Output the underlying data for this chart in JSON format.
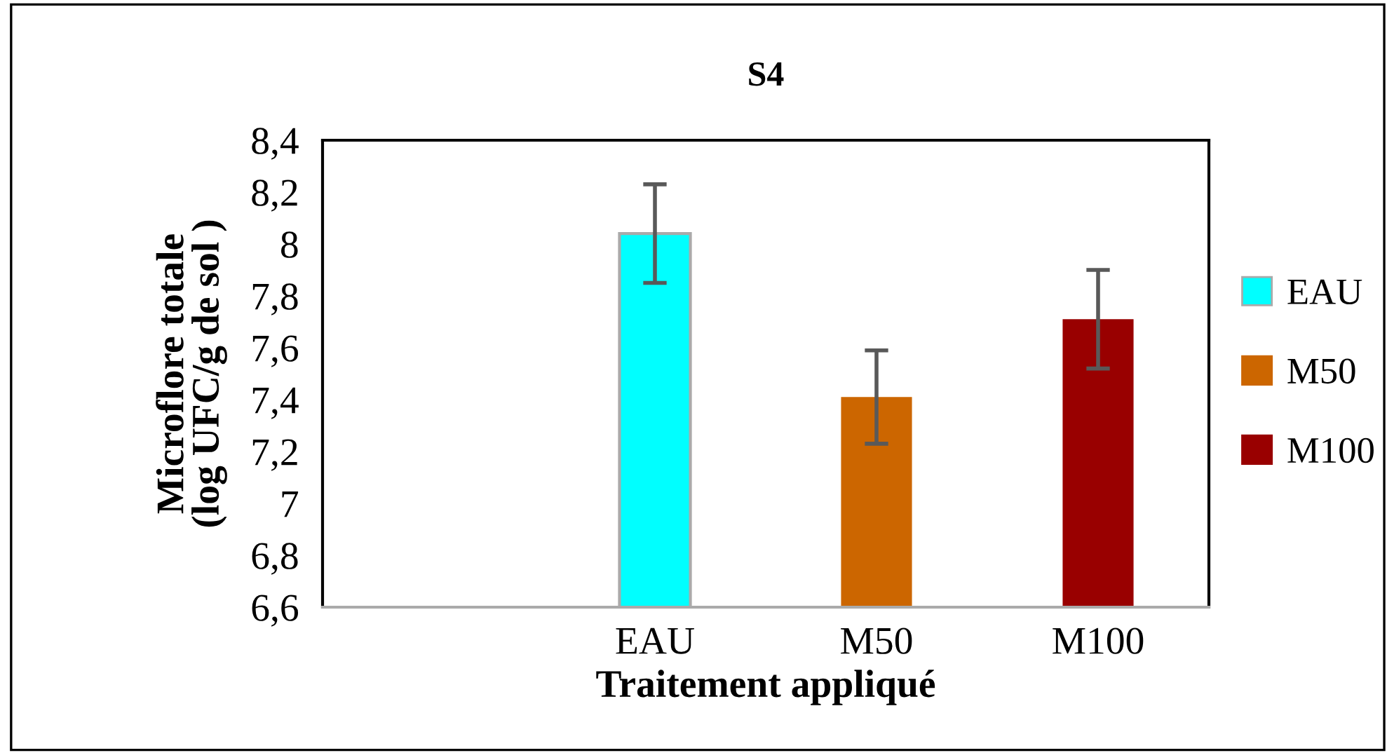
{
  "chart_data": {
    "type": "bar",
    "title": "S4",
    "xlabel": "Traitement appliqué",
    "ylabel": "Microflore totale\n(log UFC/g de sol )",
    "categories": [
      null,
      "EAU",
      "M50",
      "M100"
    ],
    "series": [
      {
        "name": "EAU",
        "color": "#00ffff",
        "values": [
          null,
          8.04,
          null,
          null
        ],
        "errors": [
          null,
          0.19,
          null,
          null
        ]
      },
      {
        "name": "M50",
        "color": "#cc6600",
        "values": [
          null,
          null,
          7.41,
          null
        ],
        "errors": [
          null,
          null,
          0.18,
          null
        ]
      },
      {
        "name": "M100",
        "color": "#990000",
        "values": [
          null,
          null,
          null,
          7.71
        ],
        "errors": [
          null,
          null,
          null,
          0.19
        ]
      }
    ],
    "ylim": [
      6.6,
      8.4
    ],
    "yticks": [
      {
        "value": 6.6,
        "label": "6,6"
      },
      {
        "value": 6.8,
        "label": "6,8"
      },
      7,
      {
        "value": 7.2,
        "label": "7,2"
      },
      {
        "value": 7.4,
        "label": "7,4"
      },
      {
        "value": 7.6,
        "label": "7,6"
      },
      {
        "value": 7.8,
        "label": "7,8"
      },
      8,
      {
        "value": 8.2,
        "label": "8,2"
      },
      {
        "value": 8.4,
        "label": "8,4"
      }
    ],
    "grid": false,
    "legend": "right"
  }
}
